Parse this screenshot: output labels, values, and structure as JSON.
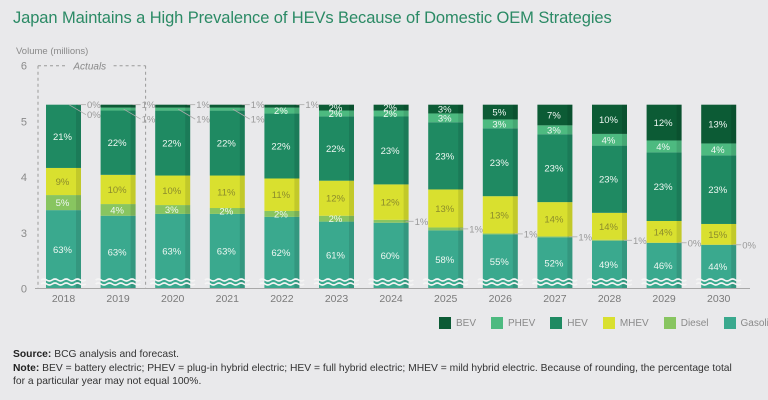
{
  "title": "Japan Maintains a High Prevalence of HEVs Because of Domestic OEM Strategies",
  "chart_data": {
    "type": "bar",
    "stacked": true,
    "title": "Japan Maintains a High Prevalence of HEVs Because of Domestic OEM Strategies",
    "xlabel": "",
    "ylabel": "Volume (millions)",
    "ylim": [
      0,
      6
    ],
    "yticks": [
      0,
      3,
      4,
      5,
      6
    ],
    "axis_break": "between 0 and 3",
    "grid": false,
    "legend": "bottom-right",
    "value_unit": "%",
    "categories": [
      "2018",
      "2019",
      "2020",
      "2021",
      "2022",
      "2023",
      "2024",
      "2025",
      "2026",
      "2027",
      "2028",
      "2029",
      "2030"
    ],
    "totals": [
      5.3,
      5.3,
      5.3,
      5.3,
      5.3,
      5.3,
      5.3,
      5.3,
      5.3,
      5.3,
      5.3,
      5.3,
      5.3
    ],
    "series": [
      {
        "name": "BEV",
        "color": "#0c5b35",
        "values": [
          0,
          1,
          1,
          1,
          1,
          2,
          2,
          3,
          5,
          7,
          10,
          12,
          13
        ]
      },
      {
        "name": "PHEV",
        "color": "#4dba80",
        "values": [
          0,
          1,
          1,
          1,
          2,
          2,
          2,
          3,
          3,
          3,
          4,
          4,
          4
        ]
      },
      {
        "name": "HEV",
        "color": "#1f8a62",
        "values": [
          21,
          22,
          22,
          22,
          22,
          22,
          23,
          23,
          23,
          23,
          23,
          23,
          23
        ]
      },
      {
        "name": "MHEV",
        "color": "#d9e02f",
        "values": [
          9,
          10,
          10,
          11,
          11,
          12,
          12,
          13,
          13,
          14,
          14,
          14,
          15
        ]
      },
      {
        "name": "Diesel",
        "color": "#88c560",
        "values": [
          5,
          4,
          3,
          2,
          2,
          2,
          1,
          1,
          1,
          1,
          1,
          0,
          0
        ]
      },
      {
        "name": "Gasoline",
        "color": "#3aa98e",
        "values": [
          63,
          63,
          63,
          63,
          62,
          61,
          60,
          58,
          55,
          52,
          49,
          46,
          44
        ]
      }
    ],
    "annotations": [
      {
        "text": "Actuals",
        "span": [
          "2018",
          "2019"
        ]
      }
    ]
  },
  "footer": {
    "source_label": "Source:",
    "source_text": " BCG analysis and forecast.",
    "note_label": "Note:",
    "note_text": " BEV = battery electric; PHEV = plug-in hybrid electric; HEV = full hybrid electric; MHEV = mild hybrid electric. Because of rounding, the percentage total for a particular year may not equal 100%."
  }
}
